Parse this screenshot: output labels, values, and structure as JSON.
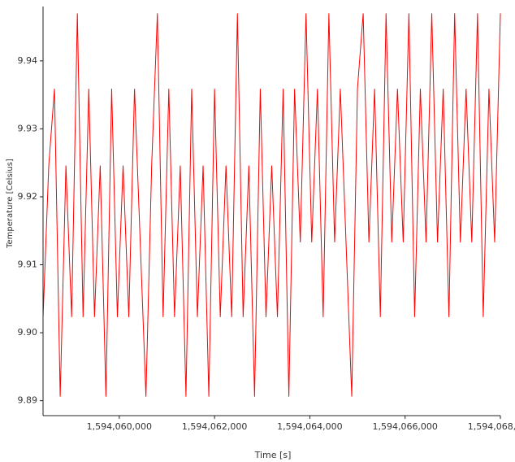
{
  "chart_data": {
    "type": "line",
    "x_label": "Time [s]",
    "y_label": "Temperature [Celsius]",
    "xlim": [
      1594058400,
      1594068000
    ],
    "ylim": [
      9.8878,
      9.948
    ],
    "xticks": [
      {
        "value": 1594060000,
        "label": "1,594,060,000"
      },
      {
        "value": 1594062000,
        "label": "1,594,062,000"
      },
      {
        "value": 1594064000,
        "label": "1,594,064,000"
      },
      {
        "value": 1594066000,
        "label": "1,594,066,000"
      },
      {
        "value": 1594068000,
        "label": "1,594,068,000"
      }
    ],
    "yticks": [
      9.89,
      {
        "value": 9.9,
        "label": "9.90"
      },
      9.91,
      9.92,
      9.93,
      9.94
    ],
    "grid": false,
    "x": [
      1594058400,
      1594058520,
      1594058640,
      1594058760,
      1594058880,
      1594059000,
      1594059120,
      1594059240,
      1594059360,
      1594059480,
      1594059600,
      1594059720,
      1594059840,
      1594059960,
      1594060080,
      1594060200,
      1594060320,
      1594060440,
      1594060560,
      1594060680,
      1594060800,
      1594060920,
      1594061040,
      1594061160,
      1594061280,
      1594061400,
      1594061520,
      1594061640,
      1594061760,
      1594061880,
      1594062000,
      1594062120,
      1594062240,
      1594062360,
      1594062480,
      1594062600,
      1594062720,
      1594062840,
      1594062960,
      1594063080,
      1594063200,
      1594063320,
      1594063440,
      1594063560,
      1594063680,
      1594063800,
      1594063920,
      1594064040,
      1594064160,
      1594064280,
      1594064400,
      1594064520,
      1594064640,
      1594064760,
      1594064880,
      1594065000,
      1594065120,
      1594065240,
      1594065360,
      1594065480,
      1594065600,
      1594065720,
      1594065840,
      1594065960,
      1594066080,
      1594066200,
      1594066320,
      1594066440,
      1594066560,
      1594066680,
      1594066800,
      1594066920,
      1594067040,
      1594067160,
      1594067280,
      1594067400,
      1594067520,
      1594067640,
      1594067760,
      1594067880,
      1594068000
    ],
    "series": [
      {
        "name": "Temperature",
        "color": "#ff0000",
        "values": [
          9.9023,
          9.9246,
          9.9359,
          9.8906,
          9.9246,
          9.9023,
          9.947,
          9.9023,
          9.9359,
          9.9023,
          9.9246,
          9.8906,
          9.9359,
          9.9023,
          9.9246,
          9.9023,
          9.9359,
          9.9133,
          9.8906,
          9.9246,
          9.947,
          9.9023,
          9.9359,
          9.9023,
          9.9246,
          9.8906,
          9.9359,
          9.9023,
          9.9246,
          9.8906,
          9.9359,
          9.9023,
          9.9246,
          9.9023,
          9.947,
          9.9023,
          9.9246,
          9.8906,
          9.9359,
          9.9023,
          9.9246,
          9.9023,
          9.9359,
          9.8906,
          9.9359,
          9.9133,
          9.947,
          9.9133,
          9.9359,
          9.9023,
          9.947,
          9.9133,
          9.9359,
          9.9133,
          9.8906,
          9.9359,
          9.947,
          9.9133,
          9.9359,
          9.9023,
          9.947,
          9.9133,
          9.9359,
          9.9133,
          9.947,
          9.9023,
          9.9359,
          9.9133,
          9.947,
          9.9133,
          9.9359,
          9.9023,
          9.947,
          9.9133,
          9.9359,
          9.9133,
          9.947,
          9.9023,
          9.9359,
          9.9133,
          9.947
        ]
      }
    ]
  }
}
